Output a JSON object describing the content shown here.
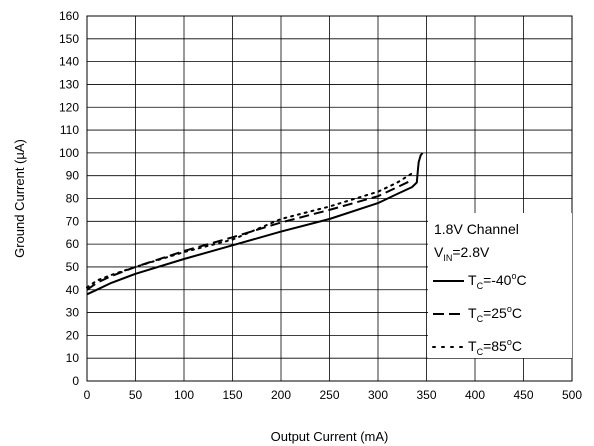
{
  "chart_data": {
    "type": "line",
    "title": "",
    "xlabel": "Output Current (mA)",
    "ylabel": "Ground Current (µA)",
    "xlim": [
      0,
      500
    ],
    "ylim": [
      0,
      160
    ],
    "x_ticks": [
      0,
      50,
      100,
      150,
      200,
      250,
      300,
      350,
      400,
      450,
      500
    ],
    "y_ticks": [
      0,
      10,
      20,
      30,
      40,
      50,
      60,
      70,
      80,
      90,
      100,
      110,
      120,
      130,
      140,
      150,
      160
    ],
    "grid": true,
    "legend_placement": "right",
    "legend_header": {
      "line1": "1.8V Channel",
      "line2_prefix": "V",
      "line2_sub": "IN",
      "line2_suffix": "=2.8V"
    },
    "series": [
      {
        "name": "TC=-40°C",
        "label_prefix": "T",
        "label_sub": "C",
        "label_value": "=-40",
        "label_sup": "o",
        "label_unit": "C",
        "style": "solid",
        "x": [
          0,
          10,
          25,
          50,
          100,
          150,
          200,
          250,
          300,
          320,
          335,
          340,
          341,
          342,
          344,
          346
        ],
        "y": [
          38,
          40,
          43,
          47,
          53.5,
          59.5,
          65.5,
          71,
          78,
          82,
          85,
          87,
          92,
          96,
          99,
          100
        ]
      },
      {
        "name": "TC=25°C",
        "label_prefix": "T",
        "label_sub": "C",
        "label_value": "=25",
        "label_sup": "o",
        "label_unit": "C",
        "style": "dashed",
        "x": [
          0,
          10,
          25,
          50,
          100,
          150,
          200,
          250,
          300,
          320,
          335
        ],
        "y": [
          40,
          43,
          46,
          50,
          57,
          63,
          69.5,
          75,
          81,
          85,
          88
        ]
      },
      {
        "name": "TC=85°C",
        "label_prefix": "T",
        "label_sub": "C",
        "label_value": "=85",
        "label_sup": "o",
        "label_unit": "C",
        "style": "dotted",
        "x": [
          0,
          10,
          25,
          50,
          100,
          150,
          200,
          250,
          300,
          320,
          335
        ],
        "y": [
          41,
          44,
          46.5,
          50,
          56.5,
          62,
          71,
          76.5,
          83,
          87,
          91
        ]
      }
    ]
  }
}
